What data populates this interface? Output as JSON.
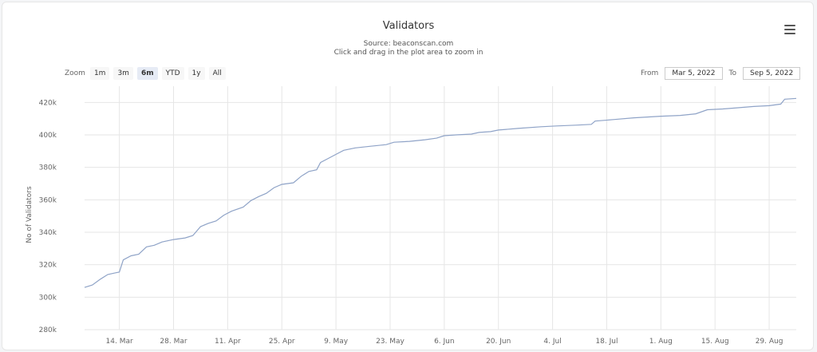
{
  "chart_data": {
    "type": "line",
    "title": "Validators",
    "subtitle": [
      "Source: beaconscan.com",
      "Click and drag in the plot area to zoom in"
    ],
    "ylabel": "No of Validators",
    "xlabel": "",
    "ylim": [
      280000,
      430000
    ],
    "y_ticks": [
      {
        "v": 280000,
        "label": "280k"
      },
      {
        "v": 300000,
        "label": "300k"
      },
      {
        "v": 320000,
        "label": "320k"
      },
      {
        "v": 340000,
        "label": "340k"
      },
      {
        "v": 360000,
        "label": "360k"
      },
      {
        "v": 380000,
        "label": "380k"
      },
      {
        "v": 400000,
        "label": "400k"
      },
      {
        "v": 420000,
        "label": "420k"
      }
    ],
    "xlim": [
      "2022-03-05",
      "2022-09-05"
    ],
    "x_ticks": [
      {
        "date": "2022-03-14",
        "label": "14. Mar"
      },
      {
        "date": "2022-03-28",
        "label": "28. Mar"
      },
      {
        "date": "2022-04-11",
        "label": "11. Apr"
      },
      {
        "date": "2022-04-25",
        "label": "25. Apr"
      },
      {
        "date": "2022-05-09",
        "label": "9. May"
      },
      {
        "date": "2022-05-23",
        "label": "23. May"
      },
      {
        "date": "2022-06-06",
        "label": "6. Jun"
      },
      {
        "date": "2022-06-20",
        "label": "20. Jun"
      },
      {
        "date": "2022-07-04",
        "label": "4. Jul"
      },
      {
        "date": "2022-07-18",
        "label": "18. Jul"
      },
      {
        "date": "2022-08-01",
        "label": "1. Aug"
      },
      {
        "date": "2022-08-15",
        "label": "15. Aug"
      },
      {
        "date": "2022-08-29",
        "label": "29. Aug"
      }
    ],
    "grid": true,
    "series": [
      {
        "color": "#8fa3c7",
        "points": [
          [
            "2022-03-05",
            306000
          ],
          [
            "2022-03-07",
            307500
          ],
          [
            "2022-03-09",
            311000
          ],
          [
            "2022-03-11",
            314000
          ],
          [
            "2022-03-13",
            315000
          ],
          [
            "2022-03-14",
            315500
          ],
          [
            "2022-03-15",
            323000
          ],
          [
            "2022-03-17",
            325500
          ],
          [
            "2022-03-19",
            326500
          ],
          [
            "2022-03-21",
            331000
          ],
          [
            "2022-03-23",
            332000
          ],
          [
            "2022-03-25",
            334000
          ],
          [
            "2022-03-28",
            335500
          ],
          [
            "2022-03-31",
            336500
          ],
          [
            "2022-04-02",
            338000
          ],
          [
            "2022-04-04",
            343500
          ],
          [
            "2022-04-06",
            345500
          ],
          [
            "2022-04-08",
            347000
          ],
          [
            "2022-04-10",
            350500
          ],
          [
            "2022-04-12",
            353000
          ],
          [
            "2022-04-15",
            355500
          ],
          [
            "2022-04-17",
            359500
          ],
          [
            "2022-04-19",
            362000
          ],
          [
            "2022-04-21",
            364000
          ],
          [
            "2022-04-23",
            367500
          ],
          [
            "2022-04-25",
            369500
          ],
          [
            "2022-04-28",
            370500
          ],
          [
            "2022-04-30",
            374500
          ],
          [
            "2022-05-02",
            377500
          ],
          [
            "2022-05-04",
            378500
          ],
          [
            "2022-05-05",
            383000
          ],
          [
            "2022-05-07",
            385500
          ],
          [
            "2022-05-09",
            388000
          ],
          [
            "2022-05-11",
            390500
          ],
          [
            "2022-05-14",
            392000
          ],
          [
            "2022-05-18",
            393000
          ],
          [
            "2022-05-22",
            394000
          ],
          [
            "2022-05-24",
            395500
          ],
          [
            "2022-05-28",
            396000
          ],
          [
            "2022-06-01",
            397000
          ],
          [
            "2022-06-04",
            398000
          ],
          [
            "2022-06-06",
            399500
          ],
          [
            "2022-06-09",
            400000
          ],
          [
            "2022-06-13",
            400500
          ],
          [
            "2022-06-15",
            401500
          ],
          [
            "2022-06-18",
            402000
          ],
          [
            "2022-06-20",
            403000
          ],
          [
            "2022-06-25",
            404000
          ],
          [
            "2022-07-01",
            405000
          ],
          [
            "2022-07-05",
            405500
          ],
          [
            "2022-07-10",
            406000
          ],
          [
            "2022-07-14",
            406500
          ],
          [
            "2022-07-15",
            408500
          ],
          [
            "2022-07-20",
            409500
          ],
          [
            "2022-07-25",
            410500
          ],
          [
            "2022-08-01",
            411500
          ],
          [
            "2022-08-06",
            412000
          ],
          [
            "2022-08-10",
            413000
          ],
          [
            "2022-08-13",
            415500
          ],
          [
            "2022-08-17",
            416000
          ],
          [
            "2022-08-20",
            416500
          ],
          [
            "2022-08-25",
            417500
          ],
          [
            "2022-08-29",
            418000
          ],
          [
            "2022-09-01",
            419000
          ],
          [
            "2022-09-02",
            422000
          ],
          [
            "2022-09-05",
            422500
          ]
        ]
      }
    ]
  },
  "zoom": {
    "label": "Zoom",
    "buttons": [
      "1m",
      "3m",
      "6m",
      "YTD",
      "1y",
      "All"
    ],
    "active": "6m"
  },
  "range": {
    "from_label": "From",
    "from_value": "Mar 5, 2022",
    "to_label": "To",
    "to_value": "Sep 5, 2022"
  },
  "colors": {
    "line": "#8fa3c7",
    "grid": "#e6e6e6"
  },
  "menu_icon": "hamburger-menu-icon"
}
